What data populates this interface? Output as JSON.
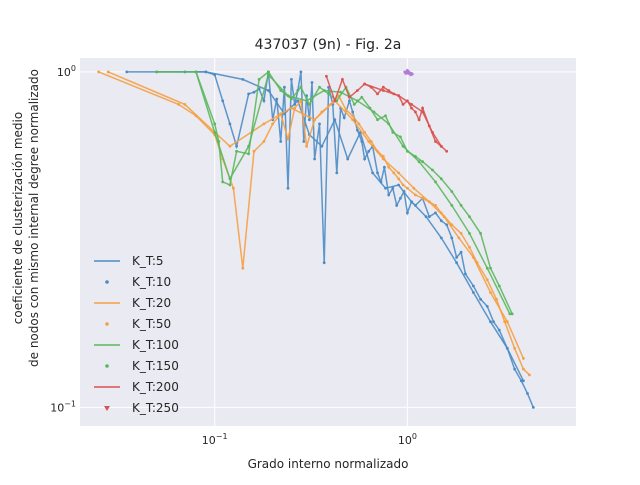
{
  "chart_data": {
    "type": "line",
    "title": "437037 (9n) - Fig. 2a",
    "xlabel": "Grado interno normalizado",
    "ylabel_line1": "coeficiente de clusterización medio",
    "ylabel_line2": "de nodos con mismo internal degree normalizado",
    "xscale": "log",
    "yscale": "log",
    "xlim": [
      0.02,
      7.5
    ],
    "ylim": [
      0.088,
      1.1
    ],
    "xticks": [
      {
        "value": 0.1,
        "base": "10",
        "exp": "−1"
      },
      {
        "value": 1,
        "base": "10",
        "exp": "0"
      }
    ],
    "yticks": [
      {
        "value": 0.1,
        "base": "10",
        "exp": "−1"
      },
      {
        "value": 1,
        "base": "10",
        "exp": "0"
      }
    ],
    "grid": true,
    "legend_position": "lower-left",
    "legend": [
      {
        "label": "K_T:5",
        "kind": "line",
        "color": "#4c8cc4"
      },
      {
        "label": "K_T:10",
        "kind": "dot",
        "color": "#4c8cc4"
      },
      {
        "label": "K_T:20",
        "kind": "line",
        "color": "#f5a042"
      },
      {
        "label": "K_T:50",
        "kind": "dot",
        "color": "#f5a042"
      },
      {
        "label": "K_T:100",
        "kind": "line",
        "color": "#5cb85c"
      },
      {
        "label": "K_T:150",
        "kind": "dot",
        "color": "#5cb85c"
      },
      {
        "label": "K_T:200",
        "kind": "line",
        "color": "#d9534f"
      },
      {
        "label": "K_T:250",
        "kind": "tri",
        "color": "#d9534f"
      }
    ],
    "series": [
      {
        "name": "K_T:5",
        "color": "#4c8cc4",
        "x": [
          0.035,
          0.07,
          0.08,
          0.09,
          0.1,
          0.11,
          0.12,
          0.13,
          0.15,
          0.16,
          0.17,
          0.18,
          0.19,
          0.2,
          0.21,
          0.22,
          0.23,
          0.24,
          0.25,
          0.26,
          0.27,
          0.28,
          0.29,
          0.3,
          0.31,
          0.32,
          0.33,
          0.35,
          0.37,
          0.39,
          0.41,
          0.43,
          0.45,
          0.47,
          0.5,
          0.52,
          0.55,
          0.58,
          0.6,
          0.63,
          0.66,
          0.7,
          0.73,
          0.76,
          0.8,
          0.84,
          0.88,
          0.92,
          0.96,
          1.0,
          1.05,
          1.1,
          1.2,
          1.3,
          1.4,
          1.5,
          1.6,
          1.7,
          1.8,
          1.9,
          2.0,
          2.2,
          2.4,
          2.6,
          2.8,
          3.0,
          3.3,
          3.6,
          3.9,
          4.2,
          4.5
        ],
        "values": [
          1.0,
          1.0,
          1.0,
          1.0,
          0.98,
          0.82,
          0.7,
          0.6,
          0.86,
          0.87,
          0.89,
          0.82,
          1.0,
          0.72,
          0.83,
          0.62,
          0.9,
          0.45,
          0.95,
          0.8,
          0.88,
          1.0,
          0.62,
          0.85,
          0.72,
          0.93,
          0.55,
          0.7,
          0.27,
          0.9,
          0.8,
          0.5,
          0.78,
          0.73,
          0.82,
          0.76,
          0.67,
          0.62,
          0.55,
          0.58,
          0.6,
          0.5,
          0.47,
          0.52,
          0.43,
          0.45,
          0.4,
          0.42,
          0.44,
          0.38,
          0.41,
          0.4,
          0.42,
          0.37,
          0.38,
          0.36,
          0.35,
          0.32,
          0.28,
          0.29,
          0.25,
          0.23,
          0.21,
          0.2,
          0.18,
          0.17,
          0.15,
          0.13,
          0.12,
          0.11,
          0.1
        ]
      },
      {
        "name": "K_T:10",
        "color": "#4c8cc4",
        "x": [
          0.05,
          0.09,
          0.14,
          0.19,
          0.23,
          0.27,
          0.31,
          0.36,
          0.42,
          0.49,
          0.57,
          0.66,
          0.77,
          0.9,
          1.05,
          1.25,
          1.5,
          1.8,
          2.2,
          2.7,
          3.3,
          4.0
        ],
        "values": [
          1.0,
          1.0,
          0.95,
          0.88,
          0.75,
          0.82,
          0.65,
          0.6,
          0.72,
          0.55,
          0.66,
          0.5,
          0.45,
          0.46,
          0.41,
          0.37,
          0.32,
          0.27,
          0.22,
          0.18,
          0.15,
          0.12
        ]
      },
      {
        "name": "K_T:20",
        "color": "#f5a042",
        "x": [
          0.025,
          0.065,
          0.08,
          0.1,
          0.11,
          0.125,
          0.14,
          0.16,
          0.18,
          0.2,
          0.22,
          0.24,
          0.26,
          0.28,
          0.3,
          0.33,
          0.36,
          0.4,
          0.44,
          0.48,
          0.52,
          0.56,
          0.6,
          0.65,
          0.7,
          0.75,
          0.8,
          0.85,
          0.9,
          0.95,
          1.0,
          1.1,
          1.2,
          1.3,
          1.4,
          1.5,
          1.7,
          1.9,
          2.1,
          2.3,
          2.6,
          2.9,
          3.2,
          3.6,
          4.0,
          4.3
        ],
        "values": [
          1.0,
          0.8,
          0.74,
          0.65,
          0.55,
          0.45,
          0.26,
          0.58,
          0.62,
          0.7,
          0.75,
          0.63,
          0.78,
          0.82,
          0.6,
          0.72,
          0.76,
          0.8,
          0.85,
          0.77,
          0.74,
          0.7,
          0.66,
          0.62,
          0.58,
          0.56,
          0.52,
          0.5,
          0.48,
          0.46,
          0.45,
          0.43,
          0.42,
          0.41,
          0.4,
          0.38,
          0.35,
          0.33,
          0.3,
          0.27,
          0.24,
          0.21,
          0.18,
          0.15,
          0.13,
          0.125
        ]
      },
      {
        "name": "K_T:50",
        "color": "#f5a042",
        "x": [
          0.028,
          0.07,
          0.12,
          0.18,
          0.25,
          0.33,
          0.42,
          0.52,
          0.63,
          0.75,
          0.9,
          1.08,
          1.3,
          1.55,
          1.85,
          2.2,
          2.7,
          3.3,
          4.0
        ],
        "values": [
          1.0,
          0.8,
          0.6,
          0.7,
          0.78,
          0.72,
          0.82,
          0.72,
          0.62,
          0.55,
          0.5,
          0.45,
          0.41,
          0.37,
          0.32,
          0.28,
          0.22,
          0.18,
          0.14
        ]
      },
      {
        "name": "K_T:100",
        "color": "#5cb85c",
        "x": [
          0.05,
          0.08,
          0.1,
          0.105,
          0.11,
          0.12,
          0.13,
          0.15,
          0.17,
          0.19,
          0.22,
          0.25,
          0.28,
          0.31,
          0.35,
          0.39,
          0.43,
          0.48,
          0.53,
          0.58,
          0.64,
          0.7,
          0.77,
          0.84,
          0.92,
          1.0,
          1.1,
          1.2,
          1.35,
          1.5,
          1.7,
          1.9,
          2.1,
          2.4,
          2.7,
          3.0,
          3.5
        ],
        "values": [
          1.0,
          1.0,
          0.7,
          0.62,
          0.47,
          0.46,
          0.58,
          0.57,
          0.95,
          1.0,
          0.88,
          0.83,
          0.9,
          0.8,
          0.9,
          0.86,
          0.82,
          0.9,
          0.8,
          0.84,
          0.78,
          0.72,
          0.74,
          0.66,
          0.64,
          0.58,
          0.56,
          0.54,
          0.51,
          0.48,
          0.44,
          0.4,
          0.37,
          0.33,
          0.26,
          0.23,
          0.19
        ]
      },
      {
        "name": "K_T:150",
        "color": "#5cb85c",
        "x": [
          0.08,
          0.1,
          0.12,
          0.15,
          0.19,
          0.24,
          0.3,
          0.37,
          0.45,
          0.55,
          0.67,
          0.8,
          0.95,
          1.15,
          1.4,
          1.7,
          2.1,
          2.6,
          3.4
        ],
        "values": [
          1.0,
          0.66,
          0.48,
          0.6,
          0.98,
          0.85,
          0.82,
          0.88,
          0.87,
          0.82,
          0.76,
          0.7,
          0.6,
          0.54,
          0.47,
          0.4,
          0.33,
          0.26,
          0.19
        ]
      },
      {
        "name": "K_T:200",
        "color": "#d9534f",
        "x": [
          0.38,
          0.42,
          0.46,
          0.5,
          0.55,
          0.6,
          0.65,
          0.7,
          0.75,
          0.8,
          0.85,
          0.9,
          0.95,
          1.0,
          1.05,
          1.1,
          1.15,
          1.2,
          1.3,
          1.4,
          1.5,
          1.6
        ],
        "values": [
          0.97,
          0.82,
          0.95,
          0.84,
          0.88,
          0.92,
          0.9,
          0.86,
          0.9,
          0.88,
          0.86,
          0.85,
          0.8,
          0.82,
          0.78,
          0.76,
          0.72,
          0.78,
          0.69,
          0.62,
          0.6,
          0.58
        ]
      },
      {
        "name": "K_T:250",
        "color": "#d9534f",
        "x": [
          0.6,
          0.75,
          0.9,
          1.05,
          1.2,
          1.35,
          1.5
        ],
        "values": [
          0.92,
          0.88,
          0.85,
          0.8,
          0.76,
          0.66,
          0.6
        ]
      },
      {
        "name": "",
        "color": "#b07cd8",
        "x": [
          0.97,
          0.98,
          0.99,
          1.0,
          1.01,
          1.02,
          1.03,
          1.04,
          1.05,
          1.06
        ],
        "values": [
          1.0,
          0.99,
          1.0,
          1.01,
          0.99,
          1.0,
          0.99,
          0.98,
          0.99,
          0.985
        ]
      }
    ]
  }
}
